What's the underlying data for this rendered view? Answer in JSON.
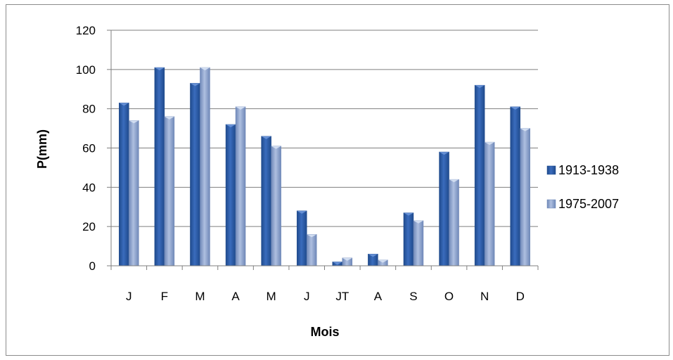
{
  "chart_data": {
    "type": "bar",
    "title": "",
    "xlabel": "Mois",
    "ylabel": "P(mm)",
    "ylim": [
      0,
      120
    ],
    "yticks": [
      0,
      20,
      40,
      60,
      80,
      100,
      120
    ],
    "categories": [
      "J",
      "F",
      "M",
      "A",
      "M",
      "J",
      "JT",
      "A",
      "S",
      "O",
      "N",
      "D"
    ],
    "series": [
      {
        "name": "1913-1938",
        "color": "#2f5fa8",
        "values": [
          83,
          101,
          93,
          72,
          66,
          28,
          2,
          6,
          27,
          58,
          92,
          81
        ]
      },
      {
        "name": "1975-2007",
        "color": "#8fa6cf",
        "values": [
          74,
          76,
          101,
          81,
          61,
          16,
          4,
          3,
          23,
          44,
          63,
          70
        ]
      }
    ],
    "grid": true,
    "legend_position": "right"
  }
}
